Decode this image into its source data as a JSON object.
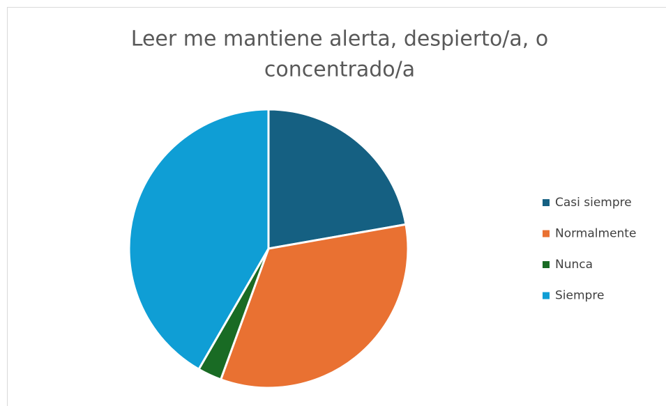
{
  "chart_data": {
    "type": "pie",
    "title": [
      "Leer me mantiene alerta, despierto/a, o",
      "concentrado/a"
    ],
    "categories": [
      "Casi siempre",
      "Normalmente",
      "Nunca",
      "Siempre"
    ],
    "values": [
      8,
      12,
      1,
      15
    ],
    "colors": [
      "#156082",
      "#e97132",
      "#196b24",
      "#0f9ed5"
    ],
    "legend": "right"
  }
}
